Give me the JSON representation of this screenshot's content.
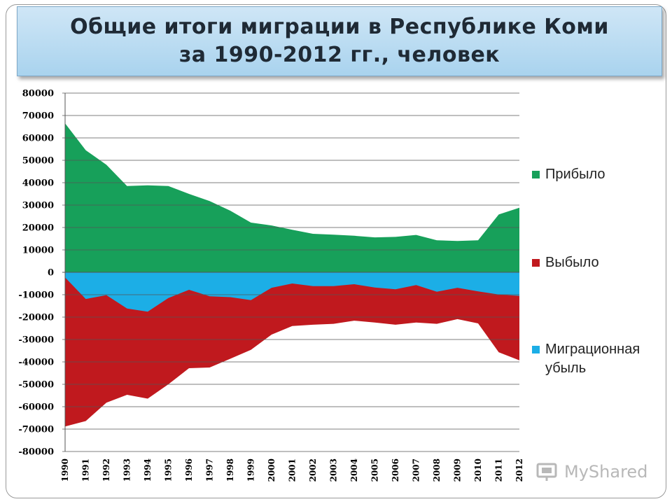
{
  "slide": {
    "title_line1": "Общие итоги миграции в Республике Коми",
    "title_line2": "за 1990-2012 гг., человек",
    "watermark": "MyShared"
  },
  "colors": {
    "arrived": "#17a05a",
    "departed": "#c0191e",
    "loss": "#1caee6",
    "grid": "#555555"
  },
  "chart_data": {
    "type": "area",
    "title": "Общие итоги миграции в Республике Коми за 1990-2012 гг., человек",
    "xlabel": "",
    "ylabel": "",
    "ylim": [
      -80000,
      80000
    ],
    "ytick_step": 10000,
    "y_ticks": [
      "80000",
      "70000",
      "60000",
      "50000",
      "40000",
      "30000",
      "20000",
      "10000",
      "0",
      "-10000",
      "-20000",
      "-30000",
      "-40000",
      "-50000",
      "-60000",
      "-70000",
      "-80000"
    ],
    "categories": [
      "1990",
      "1991",
      "1992",
      "1993",
      "1994",
      "1995",
      "1996",
      "1997",
      "1998",
      "1999",
      "2000",
      "2001",
      "2002",
      "2003",
      "2004",
      "2005",
      "2006",
      "2007",
      "2008",
      "2009",
      "2010",
      "2011",
      "2012"
    ],
    "grid": true,
    "legend_position": "right",
    "series": [
      {
        "name": "Прибыло",
        "color": "#17a05a",
        "values": [
          66500,
          54500,
          48000,
          38500,
          38800,
          38500,
          35000,
          31800,
          27500,
          22200,
          20900,
          19000,
          17200,
          16800,
          16300,
          15600,
          15800,
          16700,
          14300,
          14000,
          14300,
          25800,
          28800
        ]
      },
      {
        "name": "Выбыло",
        "color": "#c0191e",
        "values": [
          -68800,
          -66400,
          -58200,
          -54700,
          -56400,
          -50000,
          -42800,
          -42500,
          -38600,
          -34600,
          -27800,
          -24000,
          -23400,
          -23000,
          -21600,
          -22400,
          -23400,
          -22400,
          -23000,
          -20900,
          -22800,
          -35700,
          -39300
        ]
      },
      {
        "name": "Миграционная убыль",
        "color": "#1caee6",
        "values": [
          -2300,
          -11900,
          -10200,
          -16200,
          -17600,
          -11500,
          -7800,
          -10700,
          -11100,
          -12400,
          -6900,
          -5000,
          -6200,
          -6200,
          -5300,
          -6800,
          -7600,
          -5700,
          -8700,
          -6900,
          -8500,
          -9900,
          -10500
        ]
      }
    ]
  },
  "legend": {
    "items": [
      {
        "label": "Прибыло",
        "color": "#17a05a"
      },
      {
        "label": "Выбыло",
        "color": "#c0191e"
      },
      {
        "label": "Миграционная убыль",
        "color": "#1caee6"
      }
    ]
  }
}
